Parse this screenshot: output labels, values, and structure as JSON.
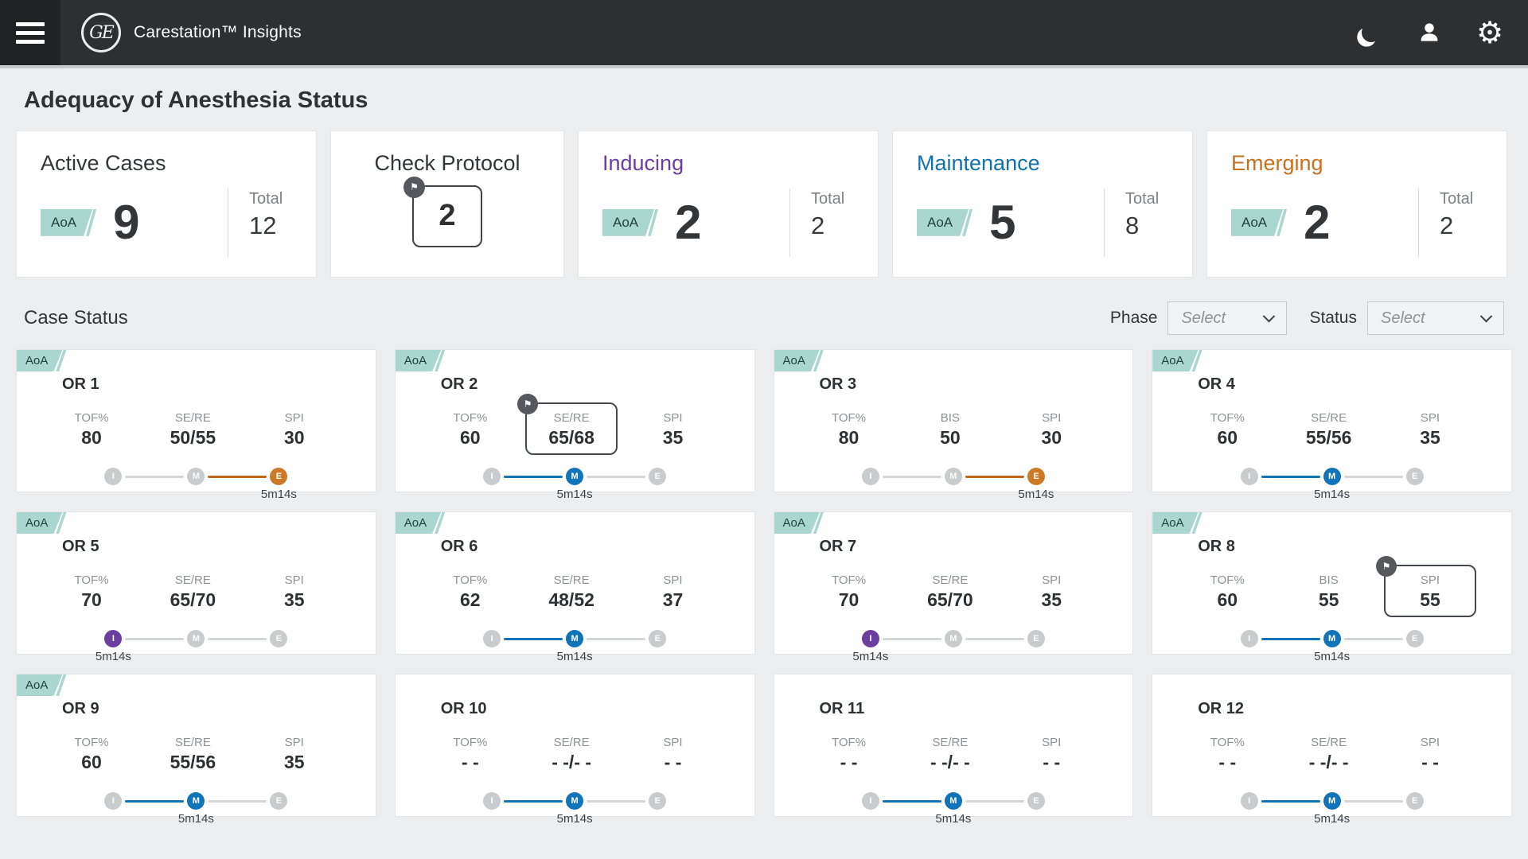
{
  "colors": {
    "navbar_bg": "#2d2f31",
    "page_bg": "#eceef0",
    "card_bg": "#ffffff",
    "aoa_badge_bg": "#a9d6ce",
    "aoa_badge_text": "#21413d",
    "inducing": "#6b3fa1",
    "maintenance": "#1274b8",
    "emerging_node": "#cd7a26",
    "emerging_line": "#c2661c",
    "emerging_title": "#c8701e",
    "maintenance_title": "#1172ae",
    "inactive_gray": "#c9cccd",
    "flag_badge_bg": "#55595e"
  },
  "icons": {
    "flag_glyph": "⚑",
    "gear_glyph": "⚙"
  },
  "navbar": {
    "logo_text": "GE",
    "title": "Carestation™ Insights"
  },
  "page": {
    "heading": "Adequacy of Anesthesia Status",
    "section_heading": "Case Status"
  },
  "summary_cards": [
    {
      "type": "stat",
      "title": "Active Cases",
      "title_color": "#333639",
      "aoa_label": "AoA",
      "aoa_value": "9",
      "total_label": "Total",
      "total_value": "12"
    },
    {
      "type": "protocol",
      "title": "Check Protocol",
      "title_color": "#333639",
      "value": "2"
    },
    {
      "type": "stat",
      "title": "Inducing",
      "title_color": "#6b3fa1",
      "aoa_label": "AoA",
      "aoa_value": "2",
      "total_label": "Total",
      "total_value": "2"
    },
    {
      "type": "stat",
      "title": "Maintenance",
      "title_color": "#1172ae",
      "aoa_label": "AoA",
      "aoa_value": "5",
      "total_label": "Total",
      "total_value": "8"
    },
    {
      "type": "stat",
      "title": "Emerging",
      "title_color": "#c8701e",
      "aoa_label": "AoA",
      "aoa_value": "2",
      "total_label": "Total",
      "total_value": "2"
    }
  ],
  "filters": {
    "phase_label": "Phase",
    "phase_value": "Select",
    "status_label": "Status",
    "status_value": "Select"
  },
  "timeline_phases": [
    "I",
    "M",
    "E"
  ],
  "aoa_label": "AoA",
  "or_cards": [
    {
      "name": "OR 1",
      "aoa": true,
      "phase": "E",
      "timer": "5m14s",
      "metrics": [
        {
          "label": "TOF%",
          "value": "80"
        },
        {
          "label": "SE/RE",
          "value": "50/55"
        },
        {
          "label": "SPI",
          "value": "30"
        }
      ]
    },
    {
      "name": "OR 2",
      "aoa": true,
      "phase": "M",
      "timer": "5m14s",
      "metrics": [
        {
          "label": "TOF%",
          "value": "60"
        },
        {
          "label": "SE/RE",
          "value": "65/68",
          "flagged": true
        },
        {
          "label": "SPI",
          "value": "35"
        }
      ]
    },
    {
      "name": "OR 3",
      "aoa": true,
      "phase": "E",
      "timer": "5m14s",
      "metrics": [
        {
          "label": "TOF%",
          "value": "80"
        },
        {
          "label": "BIS",
          "value": "50"
        },
        {
          "label": "SPI",
          "value": "30"
        }
      ]
    },
    {
      "name": "OR 4",
      "aoa": true,
      "phase": "M",
      "timer": "5m14s",
      "metrics": [
        {
          "label": "TOF%",
          "value": "60"
        },
        {
          "label": "SE/RE",
          "value": "55/56"
        },
        {
          "label": "SPI",
          "value": "35"
        }
      ]
    },
    {
      "name": "OR 5",
      "aoa": true,
      "phase": "I",
      "timer": "5m14s",
      "metrics": [
        {
          "label": "TOF%",
          "value": "70"
        },
        {
          "label": "SE/RE",
          "value": "65/70"
        },
        {
          "label": "SPI",
          "value": "35"
        }
      ]
    },
    {
      "name": "OR 6",
      "aoa": true,
      "phase": "M",
      "timer": "5m14s",
      "metrics": [
        {
          "label": "TOF%",
          "value": "62"
        },
        {
          "label": "SE/RE",
          "value": "48/52"
        },
        {
          "label": "SPI",
          "value": "37"
        }
      ]
    },
    {
      "name": "OR 7",
      "aoa": true,
      "phase": "I",
      "timer": "5m14s",
      "metrics": [
        {
          "label": "TOF%",
          "value": "70"
        },
        {
          "label": "SE/RE",
          "value": "65/70"
        },
        {
          "label": "SPI",
          "value": "35"
        }
      ]
    },
    {
      "name": "OR 8",
      "aoa": true,
      "phase": "M",
      "timer": "5m14s",
      "metrics": [
        {
          "label": "TOF%",
          "value": "60"
        },
        {
          "label": "BIS",
          "value": "55"
        },
        {
          "label": "SPI",
          "value": "55",
          "flagged": true
        }
      ]
    },
    {
      "name": "OR 9",
      "aoa": true,
      "phase": "M",
      "timer": "5m14s",
      "metrics": [
        {
          "label": "TOF%",
          "value": "60"
        },
        {
          "label": "SE/RE",
          "value": "55/56"
        },
        {
          "label": "SPI",
          "value": "35"
        }
      ]
    },
    {
      "name": "OR 10",
      "aoa": false,
      "phase": "M",
      "timer": "5m14s",
      "metrics": [
        {
          "label": "TOF%",
          "value": "- -"
        },
        {
          "label": "SE/RE",
          "value": "- -/- -"
        },
        {
          "label": "SPI",
          "value": "- -"
        }
      ]
    },
    {
      "name": "OR 11",
      "aoa": false,
      "phase": "M",
      "timer": "5m14s",
      "metrics": [
        {
          "label": "TOF%",
          "value": "- -"
        },
        {
          "label": "SE/RE",
          "value": "- -/- -"
        },
        {
          "label": "SPI",
          "value": "- -"
        }
      ]
    },
    {
      "name": "OR 12",
      "aoa": false,
      "phase": "M",
      "timer": "5m14s",
      "metrics": [
        {
          "label": "TOF%",
          "value": "- -"
        },
        {
          "label": "SE/RE",
          "value": "- -/- -"
        },
        {
          "label": "SPI",
          "value": "- -"
        }
      ]
    }
  ]
}
